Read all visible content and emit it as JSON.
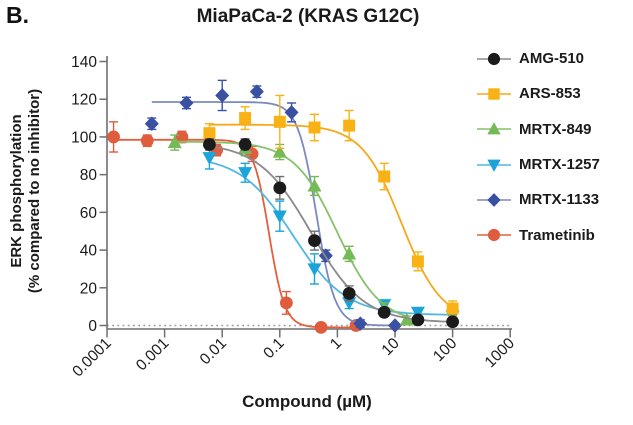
{
  "panel_label": "B.",
  "title": "MiaPaCa-2 (KRAS G12C)",
  "y_axis": {
    "title_line1": "ERK phosphorylation",
    "title_line2": "(% compared to no inhibitor)",
    "ticks": [
      0,
      20,
      40,
      60,
      80,
      100,
      120,
      140
    ]
  },
  "x_axis": {
    "title": "Compound (µM)",
    "tick_labels": [
      "0.0001",
      "0.001",
      "0.01",
      "0.1",
      "1",
      "10",
      "100",
      "1000"
    ],
    "tick_values": [
      0.0001,
      0.001,
      0.01,
      0.1,
      1,
      10,
      100,
      1000
    ]
  },
  "chart_data": {
    "type": "line",
    "title": "MiaPaCa-2 (KRAS G12C)",
    "xlabel": "Compound (µM)",
    "ylabel": "ERK phosphorylation (% compared to no inhibitor)",
    "x_scale": "log",
    "xlim": [
      0.0001,
      1000
    ],
    "ylim": [
      0,
      140
    ],
    "grid": false,
    "zero_line": "dotted",
    "legend_position": "right",
    "axis_color": "#6f6f6f",
    "series": [
      {
        "name": "AMG-510",
        "marker": "circle",
        "color": "#1b1b1b",
        "line_color": "#8a8a8a",
        "errbar_color": "#6f6f6f",
        "points": [
          [
            0.006,
            96,
            3
          ],
          [
            0.025,
            96,
            3
          ],
          [
            0.1,
            73,
            6
          ],
          [
            0.4,
            45,
            5
          ],
          [
            1.6,
            17,
            4
          ],
          [
            6.5,
            7,
            2
          ],
          [
            25,
            3,
            2
          ],
          [
            100,
            2,
            2
          ]
        ],
        "curve": {
          "top": 97,
          "bottom": 1.5,
          "ec50": 0.35,
          "hill": 0.95
        }
      },
      {
        "name": "ARS-853",
        "marker": "square",
        "color": "#F9B215",
        "line_color": "#F6A81C",
        "errbar_color": "#F9B215",
        "points": [
          [
            0.006,
            102,
            5
          ],
          [
            0.025,
            110,
            6
          ],
          [
            0.1,
            108,
            14
          ],
          [
            0.4,
            105,
            7
          ],
          [
            1.6,
            106,
            8
          ],
          [
            6.5,
            79,
            7
          ],
          [
            25,
            34,
            5
          ],
          [
            100,
            9,
            4
          ]
        ],
        "curve": {
          "top": 106.5,
          "bottom": 2,
          "ec50": 13,
          "hill": 1.25
        }
      },
      {
        "name": "MRTX-849",
        "marker": "triangle-up",
        "color": "#76B957",
        "line_color": "#86C26A",
        "errbar_color": "#76B957",
        "points": [
          [
            0.0015,
            97,
            4
          ],
          [
            0.006,
            98,
            3
          ],
          [
            0.025,
            94,
            4
          ],
          [
            0.1,
            92,
            4
          ],
          [
            0.4,
            74,
            5
          ],
          [
            1.6,
            38,
            4
          ],
          [
            6.5,
            9,
            3
          ],
          [
            16,
            3,
            2
          ]
        ],
        "curve": {
          "top": 97.5,
          "bottom": 1,
          "ec50": 1.0,
          "hill": 1.15
        }
      },
      {
        "name": "MRTX-1257",
        "marker": "triangle-down",
        "color": "#1BA3DA",
        "line_color": "#4FB8E2",
        "errbar_color": "#1BA3DA",
        "points": [
          [
            0.006,
            89,
            6
          ],
          [
            0.025,
            81,
            5
          ],
          [
            0.1,
            58,
            8
          ],
          [
            0.4,
            30,
            8
          ],
          [
            1.6,
            12,
            3
          ],
          [
            6.5,
            11,
            2
          ],
          [
            25,
            7,
            2
          ],
          [
            100,
            5,
            2
          ]
        ],
        "curve": {
          "top": 90,
          "bottom": 5.5,
          "ec50": 0.17,
          "hill": 0.95
        }
      },
      {
        "name": "MRTX-1133",
        "marker": "diamond",
        "color": "#3A50A0",
        "line_color": "#7A89C2",
        "errbar_color": "#3A50A0",
        "points": [
          [
            0.0006,
            107,
            3
          ],
          [
            0.0024,
            118,
            3
          ],
          [
            0.01,
            122,
            8
          ],
          [
            0.04,
            124,
            3
          ],
          [
            0.16,
            113,
            5
          ],
          [
            0.63,
            37,
            3
          ],
          [
            2.5,
            1,
            2
          ],
          [
            10,
            0,
            1
          ]
        ],
        "curve": {
          "top": 118.5,
          "bottom": 0,
          "ec50": 0.43,
          "hill": 2.7
        }
      },
      {
        "name": "Trametinib",
        "marker": "circle",
        "color": "#DF5C3C",
        "line_color": "#E2603C",
        "errbar_color": "#DF5C3C",
        "points": [
          [
            0.00013,
            100,
            8
          ],
          [
            0.0005,
            98,
            3
          ],
          [
            0.002,
            100,
            3
          ],
          [
            0.008,
            93,
            3
          ],
          [
            0.033,
            91,
            4
          ],
          [
            0.13,
            12,
            6
          ],
          [
            0.52,
            -1,
            1
          ],
          [
            2.1,
            0,
            1
          ]
        ],
        "curve": {
          "top": 98.5,
          "bottom": -1,
          "ec50": 0.065,
          "hill": 3.2
        }
      }
    ]
  }
}
